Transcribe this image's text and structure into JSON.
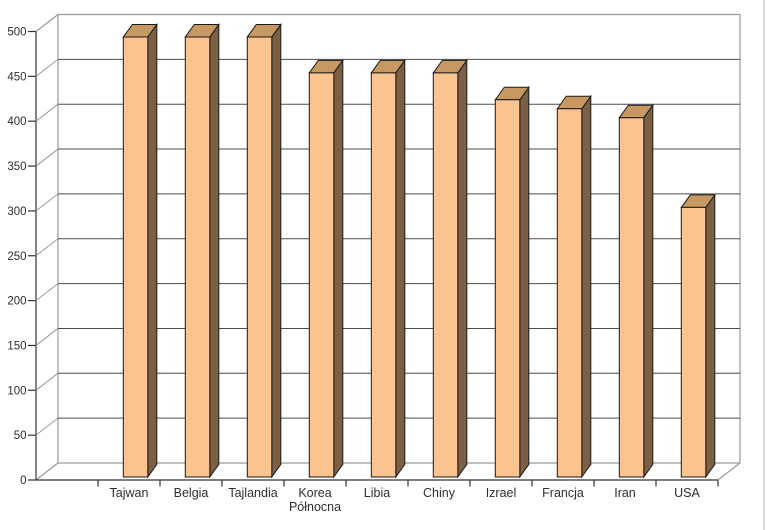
{
  "chart_data": {
    "type": "bar",
    "style": "3d-column",
    "title": "",
    "xlabel": "",
    "ylabel": "",
    "categories": [
      "Tajwan",
      "Belgia",
      "Tajlandia",
      "Korea Północna",
      "Libia",
      "Chiny",
      "Izrael",
      "Francja",
      "Iran",
      "USA"
    ],
    "values": [
      490,
      490,
      490,
      450,
      450,
      450,
      420,
      410,
      400,
      300
    ],
    "ylim": [
      0,
      500
    ],
    "ytick_step": 50,
    "ytick_labels": [
      "0",
      "50",
      "100",
      "150",
      "200",
      "250",
      "300",
      "350",
      "400",
      "450",
      "500"
    ],
    "grid": true,
    "legend": "none",
    "background": "#FFFFFF"
  },
  "colors": {
    "bar_front": "#FBC38F",
    "bar_top": "#C79862",
    "bar_side": "#7D5F43",
    "bar_outline": "#1A1A1A",
    "gridline": "#4D4D4D",
    "frame": "#9A9A9A",
    "axis": "#333333",
    "text": "#2E2E2E",
    "window_border": "#C8C8C8"
  }
}
